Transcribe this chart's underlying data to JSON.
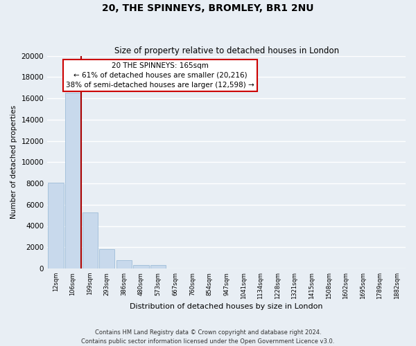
{
  "title": "20, THE SPINNEYS, BROMLEY, BR1 2NU",
  "subtitle": "Size of property relative to detached houses in London",
  "xlabel": "Distribution of detached houses by size in London",
  "ylabel": "Number of detached properties",
  "bar_labels": [
    "12sqm",
    "106sqm",
    "199sqm",
    "293sqm",
    "386sqm",
    "480sqm",
    "573sqm",
    "667sqm",
    "760sqm",
    "854sqm",
    "947sqm",
    "1041sqm",
    "1134sqm",
    "1228sqm",
    "1321sqm",
    "1415sqm",
    "1508sqm",
    "1602sqm",
    "1695sqm",
    "1789sqm",
    "1882sqm"
  ],
  "bar_values": [
    8100,
    16500,
    5300,
    1800,
    800,
    300,
    300,
    0,
    0,
    0,
    0,
    0,
    0,
    0,
    0,
    0,
    0,
    0,
    0,
    0,
    0
  ],
  "bar_color": "#c8d9ec",
  "bar_edge_color": "#9dbcd8",
  "ylim": [
    0,
    20000
  ],
  "yticks": [
    0,
    2000,
    4000,
    6000,
    8000,
    10000,
    12000,
    14000,
    16000,
    18000,
    20000
  ],
  "vline_color": "#aa0000",
  "annotation_title": "20 THE SPINNEYS: 165sqm",
  "annotation_line1": "← 61% of detached houses are smaller (20,216)",
  "annotation_line2": "38% of semi-detached houses are larger (12,598) →",
  "annotation_box_color": "#cc0000",
  "footer_line1": "Contains HM Land Registry data © Crown copyright and database right 2024.",
  "footer_line2": "Contains public sector information licensed under the Open Government Licence v3.0.",
  "background_color": "#e8eef4",
  "grid_color": "#ffffff"
}
